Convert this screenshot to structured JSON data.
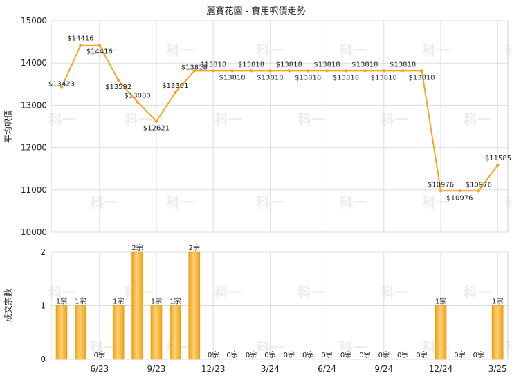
{
  "chart_data": [
    {
      "type": "line",
      "title": "麗寶花園 - 實用呎價走勢",
      "ylabel": "平均呎價",
      "ylim": [
        10000,
        15000
      ],
      "yticks": [
        10000,
        11000,
        12000,
        13000,
        14000,
        15000
      ],
      "grid": true,
      "color": "#f5a623",
      "series": [
        {
          "values": [
            13423,
            14416,
            14416,
            13592,
            13080,
            12621,
            13301,
            13818,
            13818,
            13818,
            13818,
            13818,
            13818,
            13818,
            13818,
            13818,
            13818,
            13818,
            13818,
            13818,
            10976,
            10976,
            10976,
            11585
          ],
          "labels": [
            "$13423",
            "$14416",
            "$14416",
            "$13592",
            "$13080",
            "$12621",
            "$13301",
            "$13818",
            "$13818",
            "$13818",
            "$13818",
            "$13818",
            "$13818",
            "$13818",
            "$13818",
            "$13818",
            "$13818",
            "$13818",
            "$13818",
            "$13818",
            "$10976",
            "$10976",
            "$10976",
            "$11585"
          ]
        }
      ]
    },
    {
      "type": "bar",
      "ylabel": "成交宗數",
      "ylim": [
        0,
        2
      ],
      "yticks": [
        0,
        1,
        2
      ],
      "grid": true,
      "color": "#f5a623",
      "xticks": [
        "6/23",
        "9/23",
        "12/23",
        "3/24",
        "6/24",
        "9/24",
        "12/24",
        "3/25"
      ],
      "values": [
        1,
        1,
        0,
        1,
        2,
        1,
        1,
        2,
        0,
        0,
        0,
        0,
        0,
        0,
        0,
        0,
        0,
        0,
        0,
        0,
        1,
        0,
        0,
        1
      ],
      "labels": [
        "1宗",
        "1宗",
        "0宗",
        "1宗",
        "2宗",
        "1宗",
        "1宗",
        "2宗",
        "0宗",
        "0宗",
        "0宗",
        "0宗",
        "0宗",
        "0宗",
        "0宗",
        "0宗",
        "0宗",
        "0宗",
        "0宗",
        "0宗",
        "1宗",
        "0宗",
        "0宗",
        "1宗"
      ]
    }
  ],
  "watermark": "科一"
}
